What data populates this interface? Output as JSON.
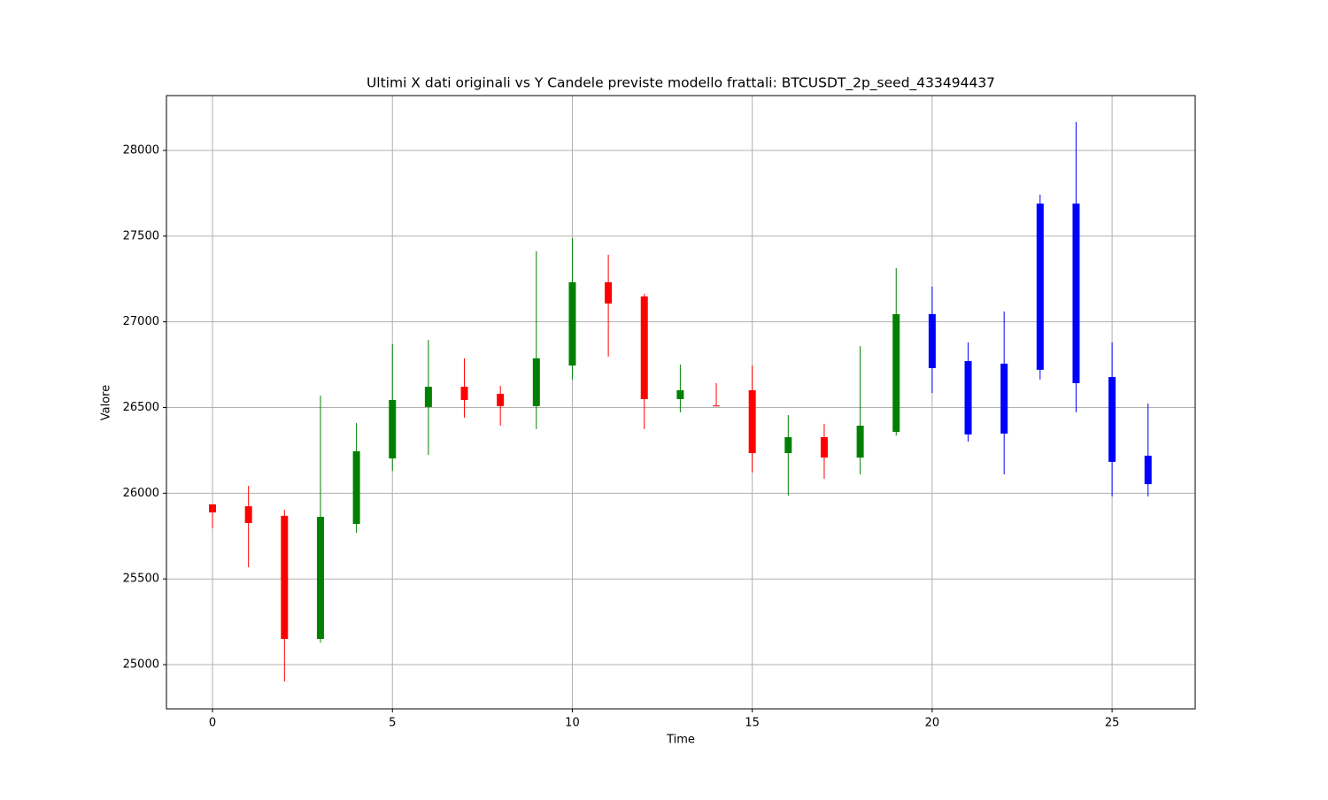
{
  "chart_data": {
    "type": "candlestick",
    "title": "Ultimi X dati originali vs Y Candele previste modello frattali: BTCUSDT_2p_seed_433494437",
    "x_label": "Time",
    "y_label": "Valore",
    "xlim": [
      -1.28,
      27.31
    ],
    "ylim": [
      24742,
      28320
    ],
    "xticks": [
      0,
      5,
      10,
      15,
      20,
      25
    ],
    "yticks": [
      25000,
      25500,
      26000,
      26500,
      27000,
      27500,
      28000
    ],
    "grid": true,
    "series": [
      {
        "x": [
          0,
          1,
          2,
          3,
          4,
          5,
          6,
          7,
          8,
          9,
          10,
          11,
          12,
          13,
          14,
          15,
          16,
          17,
          18,
          19
        ],
        "open": [
          25935,
          25924,
          25868,
          25150,
          25821,
          26203,
          26503,
          26621,
          26580,
          26508,
          26745,
          27231,
          27148,
          26549,
          26512,
          26601,
          26234,
          26327,
          26208,
          26358
        ],
        "high": [
          25935,
          26043,
          25904,
          26570,
          26410,
          26869,
          26895,
          26787,
          26627,
          27412,
          27489,
          27391,
          27164,
          26751,
          26642,
          26745,
          26456,
          26405,
          26859,
          27313
        ],
        "low": [
          25795,
          25568,
          24902,
          25129,
          25769,
          26131,
          26224,
          26441,
          26394,
          26374,
          26663,
          26797,
          26374,
          26472,
          26508,
          26121,
          25986,
          26084,
          26110,
          26337
        ],
        "close": [
          25888,
          25826,
          25150,
          25862,
          26245,
          26544,
          26621,
          26544,
          26508,
          26787,
          27231,
          27107,
          26549,
          26601,
          26508,
          26234,
          26327,
          26208,
          26394,
          27045
        ],
        "up_color": "green",
        "down_color": "red"
      },
      {
        "x": [
          20,
          21,
          22,
          23,
          24,
          25,
          26
        ],
        "open": [
          27045,
          26771,
          26756,
          26720,
          27690,
          26678,
          26219
        ],
        "high": [
          27205,
          26880,
          27060,
          27742,
          28166,
          26880,
          26524
        ],
        "low": [
          26585,
          26301,
          26110,
          26663,
          26472,
          25981,
          25981
        ],
        "close": [
          26730,
          26343,
          26348,
          27690,
          26642,
          26183,
          26053
        ],
        "color": "blue"
      }
    ]
  }
}
